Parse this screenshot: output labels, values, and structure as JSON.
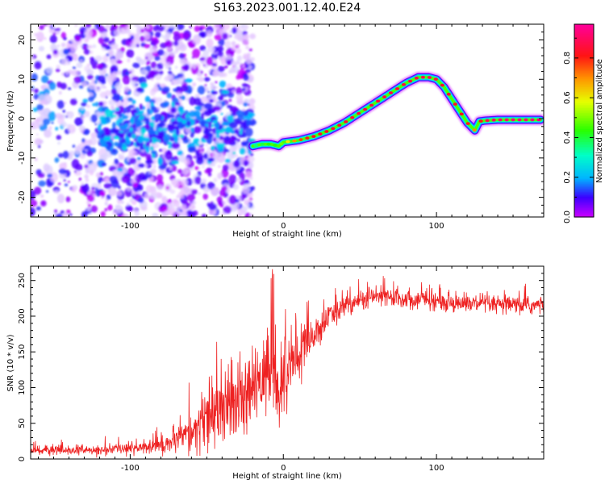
{
  "chart_data": [
    {
      "type": "heatmap",
      "title": "S163.2023.001.12.40.E24",
      "xlabel": "Height of straight line (km)",
      "ylabel": "Frequency (Hz)",
      "xlim": [
        -165,
        170
      ],
      "ylim": [
        -25,
        24
      ],
      "xticks": [
        -100,
        0,
        100
      ],
      "xtick_labels": [
        "-100",
        "0",
        "100"
      ],
      "yticks": [
        -20,
        -10,
        0,
        10,
        20
      ],
      "ytick_labels": [
        "-20",
        "-10",
        "0",
        "10",
        "20"
      ],
      "colorbar": {
        "label": "Normalized spectral amplitude",
        "range": [
          0,
          0.97
        ],
        "ticks": [
          0.0,
          0.2,
          0.4,
          0.6,
          0.8
        ],
        "tick_labels": [
          "0.0",
          "0.2",
          "0.4",
          "0.6",
          "0.8"
        ],
        "colormap": "gist_rainbow_r"
      },
      "ridge": {
        "description": "frequency centroid of the high-amplitude signal vs height",
        "height": [
          -20,
          -14,
          -8,
          -3,
          0,
          10,
          20,
          30,
          40,
          50,
          60,
          70,
          80,
          88,
          95,
          100,
          105,
          110,
          115,
          120,
          125,
          128,
          132,
          140,
          150,
          160,
          168
        ],
        "frequency": [
          -7,
          -6.5,
          -6.5,
          -7,
          -6,
          -5.5,
          -4.5,
          -3,
          -1,
          1.5,
          4,
          6.5,
          9,
          10.5,
          10.5,
          10,
          8,
          5,
          2,
          -1,
          -3,
          -0.7,
          -0.5,
          -0.3,
          -0.3,
          -0.3,
          -0.3
        ],
        "amplitude": [
          0.35,
          0.4,
          0.45,
          0.42,
          0.55,
          0.78,
          0.85,
          0.86,
          0.87,
          0.88,
          0.88,
          0.88,
          0.88,
          0.9,
          0.92,
          0.88,
          0.86,
          0.85,
          0.84,
          0.83,
          0.72,
          0.8,
          0.9,
          0.93,
          0.95,
          0.95,
          0.95
        ]
      },
      "noise_region": {
        "description": "scattered low-amplitude purple/violet blobs",
        "height_range": [
          -165,
          -20
        ],
        "frequency_range": [
          -25,
          24
        ],
        "amplitude_range": [
          0.0,
          0.25
        ]
      }
    },
    {
      "type": "line",
      "title": "",
      "xlabel": "Height of straight line (km)",
      "ylabel": "SNR (10 * v/v)",
      "xlim": [
        -165,
        170
      ],
      "ylim": [
        0,
        270
      ],
      "xticks": [
        -100,
        0,
        100
      ],
      "xtick_labels": [
        "-100",
        "0",
        "100"
      ],
      "yticks": [
        0,
        50,
        100,
        150,
        200,
        250
      ],
      "ytick_labels": [
        "0",
        "50",
        "100",
        "150",
        "200",
        "250"
      ],
      "series": [
        {
          "name": "SNR",
          "color": "#ee2020",
          "envelope": {
            "description": "smoothed trend of the noisy SNR trace",
            "x": [
              -165,
              -120,
              -100,
              -85,
              -75,
              -65,
              -55,
              -45,
              -35,
              -25,
              -15,
              -8,
              -5,
              -3,
              0,
              5,
              10,
              15,
              20,
              25,
              30,
              40,
              50,
              60,
              80,
              100,
              120,
              140,
              160,
              170
            ],
            "y": [
              12,
              12,
              15,
              18,
              22,
              30,
              45,
              60,
              70,
              80,
              110,
              130,
              120,
              80,
              110,
              130,
              145,
              160,
              175,
              185,
              200,
              215,
              222,
              228,
              225,
              220,
              218,
              215,
              215,
              215
            ],
            "spread": [
              6,
              6,
              8,
              10,
              14,
              20,
              35,
              45,
              45,
              45,
              50,
              60,
              50,
              50,
              40,
              40,
              40,
              35,
              25,
              20,
              15,
              14,
              14,
              14,
              12,
              12,
              12,
              12,
              12,
              12
            ]
          }
        }
      ]
    }
  ]
}
